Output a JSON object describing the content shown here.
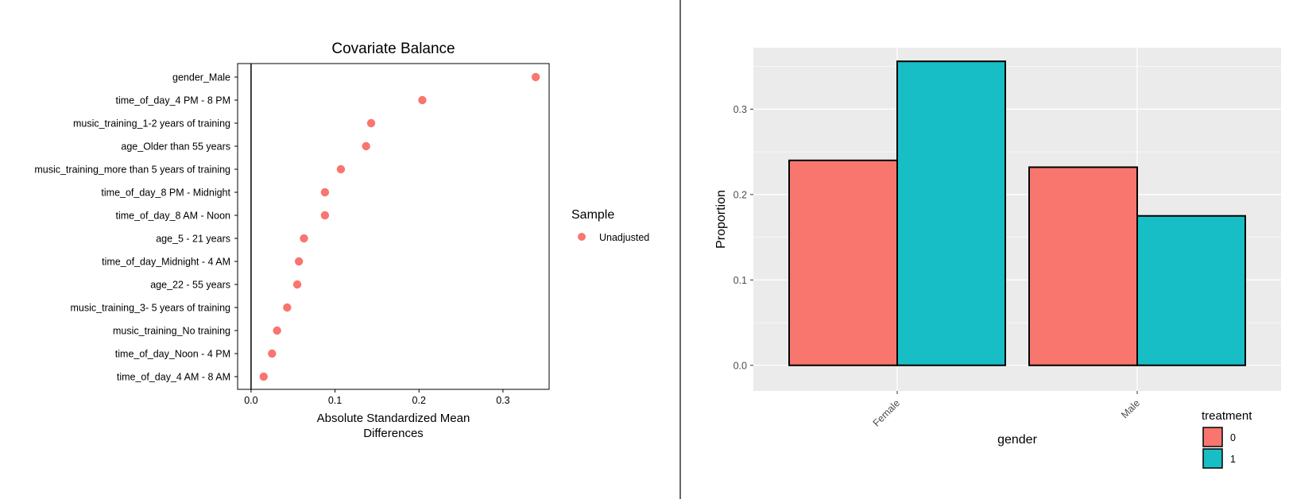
{
  "divider": true,
  "chart_data": [
    {
      "type": "scatter",
      "title": "Covariate Balance",
      "xlabel_line1": "Absolute Standardized Mean",
      "xlabel_line2": "Differences",
      "ylabel": "",
      "xlim": [
        -0.016,
        0.355
      ],
      "x_ticks": [
        0.0,
        0.1,
        0.2,
        0.3
      ],
      "x_tick_labels": [
        "0.0",
        "0.1",
        "0.2",
        "0.3"
      ],
      "reference_line_x": 0,
      "categories": [
        "gender_Male",
        "time_of_day_4 PM - 8 PM",
        "music_training_1-2 years of training",
        "age_Older than 55 years",
        "music_training_more than 5 years of training",
        "time_of_day_8 PM - Midnight",
        "time_of_day_8 AM - Noon",
        "age_5 - 21 years",
        "time_of_day_Midnight - 4 AM",
        "age_22 - 55 years",
        "music_training_3- 5 years of training",
        "music_training_No training",
        "time_of_day_Noon - 4 PM",
        "time_of_day_4 AM - 8 AM"
      ],
      "series": [
        {
          "name": "Unadjusted",
          "color": "#F8766D",
          "values": [
            0.339,
            0.204,
            0.143,
            0.137,
            0.107,
            0.088,
            0.088,
            0.063,
            0.057,
            0.055,
            0.043,
            0.031,
            0.025,
            0.015
          ]
        }
      ],
      "legend": {
        "title": "Sample",
        "position": "right"
      },
      "grid": false
    },
    {
      "type": "bar",
      "xlabel": "gender",
      "ylabel": "Proportion",
      "categories": [
        "Female",
        "Male"
      ],
      "ylim": [
        -0.03,
        0.372
      ],
      "y_ticks": [
        0.0,
        0.1,
        0.2,
        0.3
      ],
      "y_tick_labels": [
        "0.0",
        "0.1",
        "0.2",
        "0.3"
      ],
      "series": [
        {
          "name": "0",
          "color": "#F8766D",
          "values": [
            0.24,
            0.232
          ]
        },
        {
          "name": "1",
          "color": "#17BEC6",
          "values": [
            0.356,
            0.175
          ]
        }
      ],
      "legend": {
        "title": "treatment",
        "position": "bottom-right"
      },
      "grid": true,
      "background": "#EBEBEB"
    }
  ]
}
